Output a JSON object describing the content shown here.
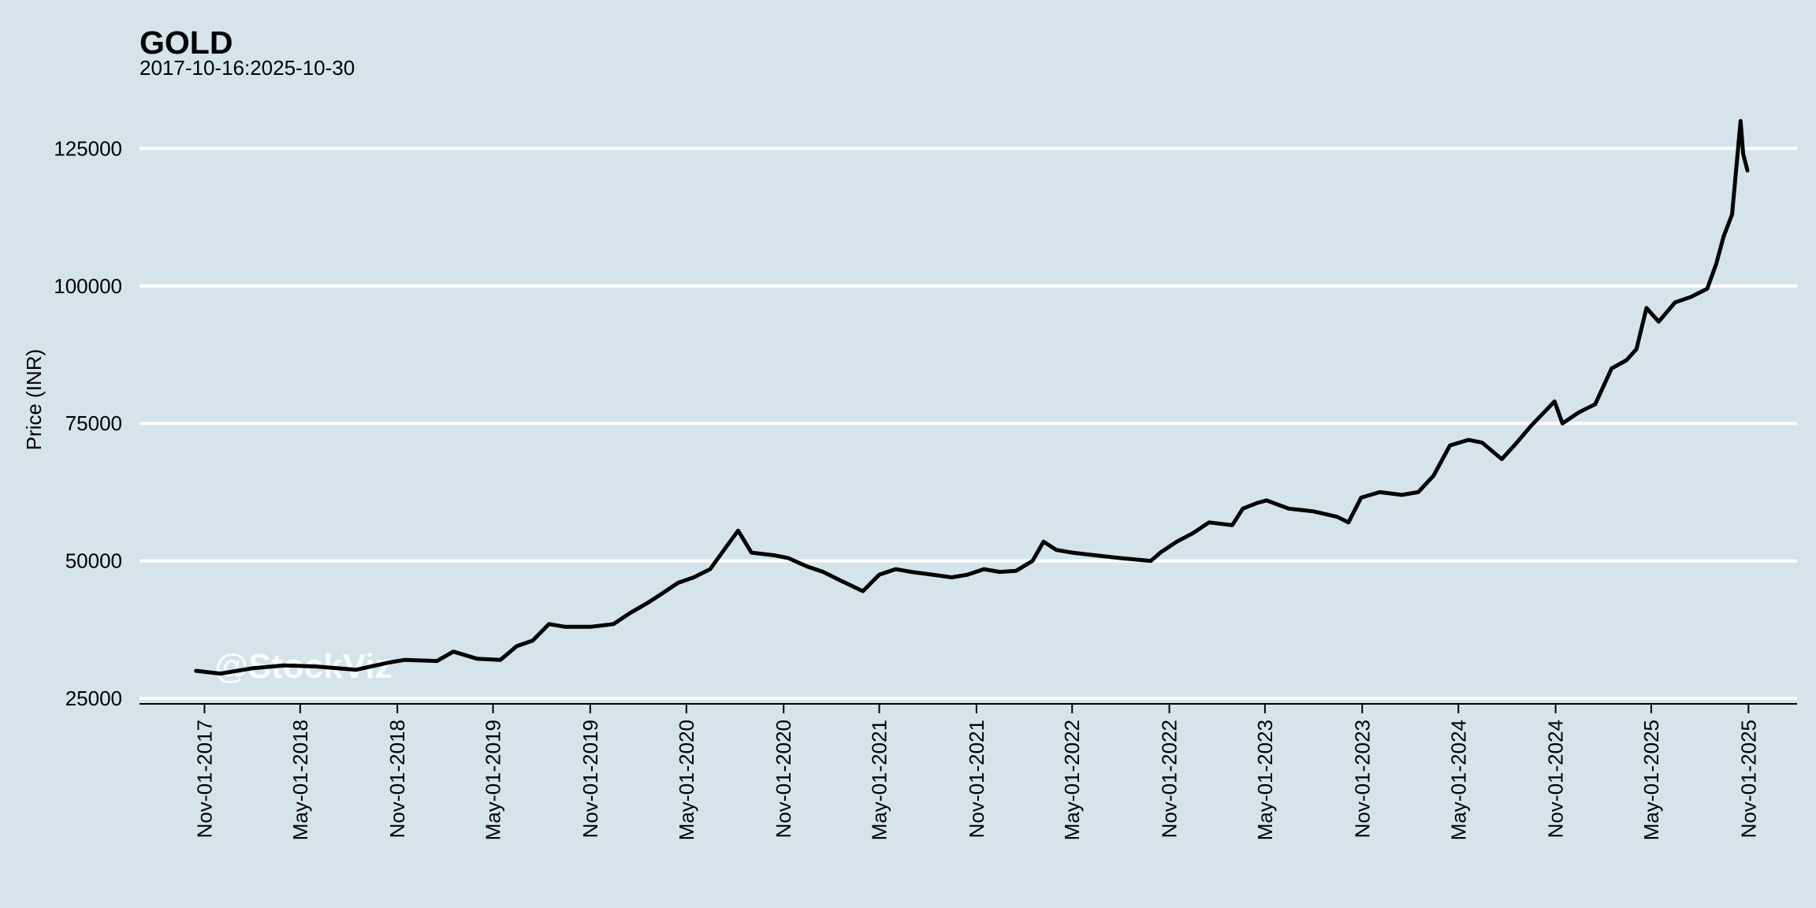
{
  "chart_data": {
    "type": "line",
    "title": "GOLD",
    "subtitle": "2017-10-16:2025-10-30",
    "xlabel": "",
    "ylabel": "Price (INR)",
    "watermark": "@StockViz",
    "xlim": [
      "2017-07-01",
      "2026-02-01"
    ],
    "ylim": [
      24000,
      130500
    ],
    "yticks": [
      25000,
      50000,
      75000,
      100000,
      125000
    ],
    "ytick_labels": [
      "25000",
      "50000",
      "75000",
      "100000",
      "125000"
    ],
    "xticks": [
      "2017-11-01",
      "2018-05-01",
      "2018-11-01",
      "2019-05-01",
      "2019-11-01",
      "2020-05-01",
      "2020-11-01",
      "2021-05-01",
      "2021-11-01",
      "2022-05-01",
      "2022-11-01",
      "2023-05-01",
      "2023-11-01",
      "2024-05-01",
      "2024-11-01",
      "2025-05-01",
      "2025-11-01"
    ],
    "xtick_labels": [
      "Nov-01-2017",
      "May-01-2018",
      "Nov-01-2018",
      "May-01-2019",
      "Nov-01-2019",
      "May-01-2020",
      "Nov-01-2020",
      "May-01-2021",
      "Nov-01-2021",
      "May-01-2022",
      "Nov-01-2022",
      "May-01-2023",
      "Nov-01-2023",
      "May-01-2024",
      "Nov-01-2024",
      "May-01-2025",
      "Nov-01-2025"
    ],
    "grid": "horizontal",
    "line_color": "#000000",
    "grid_color": "#ffffff",
    "background_color": "#d5e4eb",
    "series": [
      {
        "x": [
          "2017-10-16",
          "2017-12-01",
          "2018-02-01",
          "2018-04-01",
          "2018-06-01",
          "2018-08-15",
          "2018-10-15",
          "2018-11-15",
          "2019-01-15",
          "2019-02-15",
          "2019-04-01",
          "2019-05-15",
          "2019-06-15",
          "2019-07-15",
          "2019-08-15",
          "2019-09-15",
          "2019-11-01",
          "2019-12-15",
          "2020-01-15",
          "2020-02-20",
          "2020-03-15",
          "2020-04-15",
          "2020-05-15",
          "2020-06-15",
          "2020-07-15",
          "2020-08-07",
          "2020-09-01",
          "2020-10-15",
          "2020-11-10",
          "2020-12-15",
          "2021-01-15",
          "2021-02-15",
          "2021-03-31",
          "2021-05-01",
          "2021-06-01",
          "2021-07-01",
          "2021-08-10",
          "2021-09-15",
          "2021-10-15",
          "2021-11-15",
          "2021-12-15",
          "2022-01-15",
          "2022-02-15",
          "2022-03-08",
          "2022-04-01",
          "2022-05-01",
          "2022-06-15",
          "2022-08-01",
          "2022-09-27",
          "2022-10-15",
          "2022-11-15",
          "2022-12-15",
          "2023-01-15",
          "2023-02-28",
          "2023-03-20",
          "2023-04-15",
          "2023-05-04",
          "2023-06-15",
          "2023-08-01",
          "2023-09-15",
          "2023-10-06",
          "2023-10-30",
          "2023-12-04",
          "2024-01-15",
          "2024-02-15",
          "2024-03-15",
          "2024-04-15",
          "2024-05-20",
          "2024-06-15",
          "2024-07-22",
          "2024-08-15",
          "2024-09-15",
          "2024-10-30",
          "2024-11-14",
          "2024-12-15",
          "2025-01-15",
          "2025-02-15",
          "2025-03-15",
          "2025-04-03",
          "2025-04-22",
          "2025-05-15",
          "2025-06-15",
          "2025-07-15",
          "2025-08-15",
          "2025-09-01",
          "2025-09-15",
          "2025-10-01",
          "2025-10-17",
          "2025-10-22",
          "2025-10-30"
        ],
        "values": [
          30000,
          29500,
          30500,
          31000,
          30800,
          30200,
          31500,
          32000,
          31800,
          33500,
          32200,
          32000,
          34500,
          35500,
          38500,
          38000,
          38000,
          38500,
          40500,
          42500,
          44000,
          46000,
          47000,
          48500,
          52500,
          55500,
          51500,
          51000,
          50500,
          49000,
          48000,
          46500,
          44500,
          47500,
          48500,
          48000,
          47500,
          47000,
          47500,
          48500,
          48000,
          48200,
          50000,
          53500,
          52000,
          51500,
          51000,
          50500,
          50000,
          51500,
          53500,
          55000,
          57000,
          56500,
          59500,
          60500,
          61000,
          59500,
          59000,
          58000,
          57000,
          61500,
          62500,
          62000,
          62500,
          65500,
          71000,
          72000,
          71500,
          68500,
          71000,
          74500,
          79000,
          75000,
          77000,
          78500,
          85000,
          86500,
          88500,
          96000,
          93500,
          97000,
          98000,
          99500,
          104000,
          109000,
          113000,
          130000,
          124000,
          121000
        ]
      }
    ]
  }
}
